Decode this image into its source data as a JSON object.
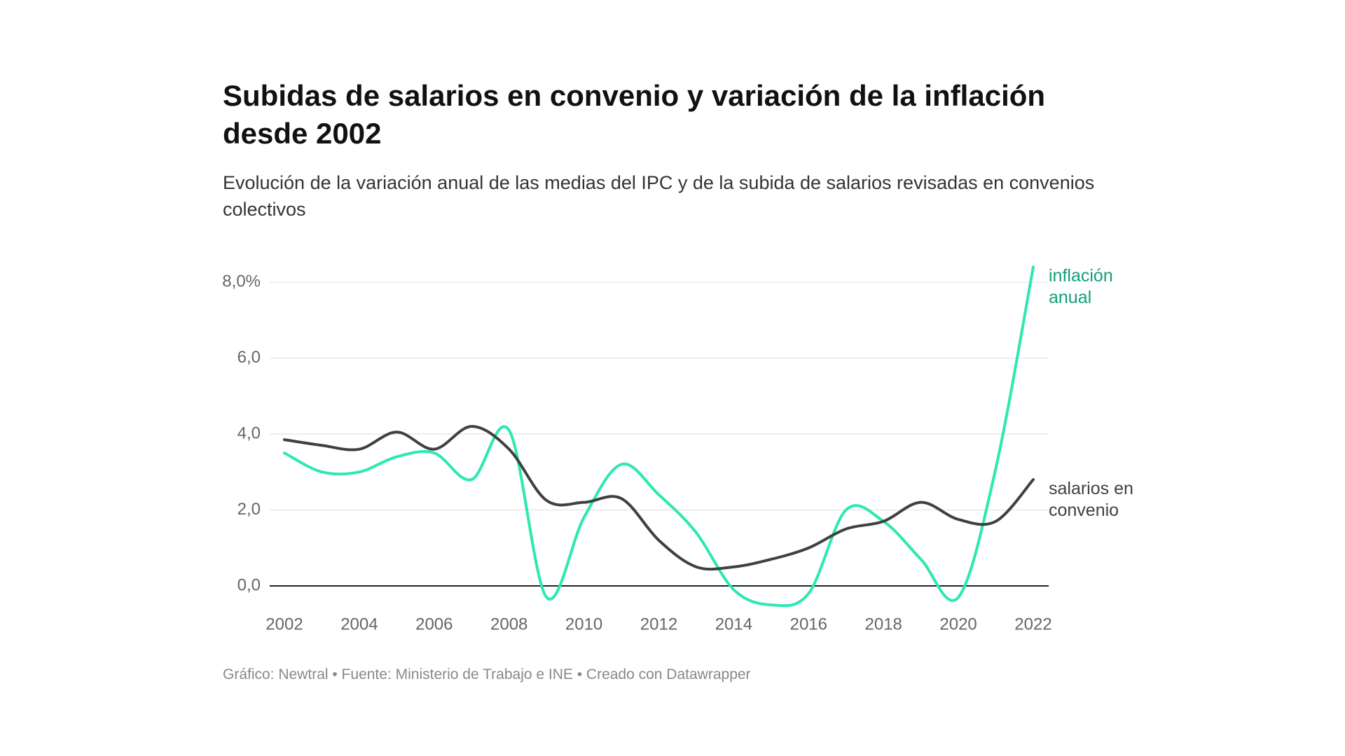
{
  "chart_data": {
    "type": "line",
    "title": "Subidas de salarios en convenio y variación de la inflación desde 2002",
    "subtitle": "Evolución de la variación anual de las medias del IPC y de la subida de salarios revisadas en convenios colectivos",
    "source": "Gráfico: Newtral • Fuente: Ministerio de Trabajo e INE • Creado con Datawrapper",
    "x": [
      2002,
      2003,
      2004,
      2005,
      2006,
      2007,
      2008,
      2009,
      2010,
      2011,
      2012,
      2013,
      2014,
      2015,
      2016,
      2017,
      2018,
      2019,
      2020,
      2021,
      2022
    ],
    "series": [
      {
        "name": "inflación anual",
        "color": "#2ce8b2",
        "values": [
          3.5,
          3.0,
          3.0,
          3.4,
          3.5,
          2.8,
          4.1,
          -0.3,
          1.8,
          3.2,
          2.4,
          1.4,
          -0.1,
          -0.5,
          -0.2,
          2.0,
          1.7,
          0.7,
          -0.3,
          3.1,
          8.4
        ]
      },
      {
        "name": "salarios en convenio",
        "color": "#404040",
        "values": [
          3.85,
          3.7,
          3.6,
          4.05,
          3.6,
          4.2,
          3.6,
          2.25,
          2.2,
          2.3,
          1.2,
          0.5,
          0.5,
          0.7,
          1.0,
          1.5,
          1.7,
          2.2,
          1.75,
          1.7,
          2.8
        ]
      }
    ],
    "xlim": [
      2002,
      2022
    ],
    "xticks": [
      2002,
      2004,
      2006,
      2008,
      2010,
      2012,
      2014,
      2016,
      2018,
      2020,
      2022
    ],
    "ylim": [
      -0.6,
      8.6
    ],
    "yticks": [
      {
        "value": 0,
        "label": "0,0"
      },
      {
        "value": 2,
        "label": "2,0"
      },
      {
        "value": 4,
        "label": "4,0"
      },
      {
        "value": 6,
        "label": "6,0"
      },
      {
        "value": 8,
        "label": "8,0%"
      }
    ],
    "grid": true
  }
}
